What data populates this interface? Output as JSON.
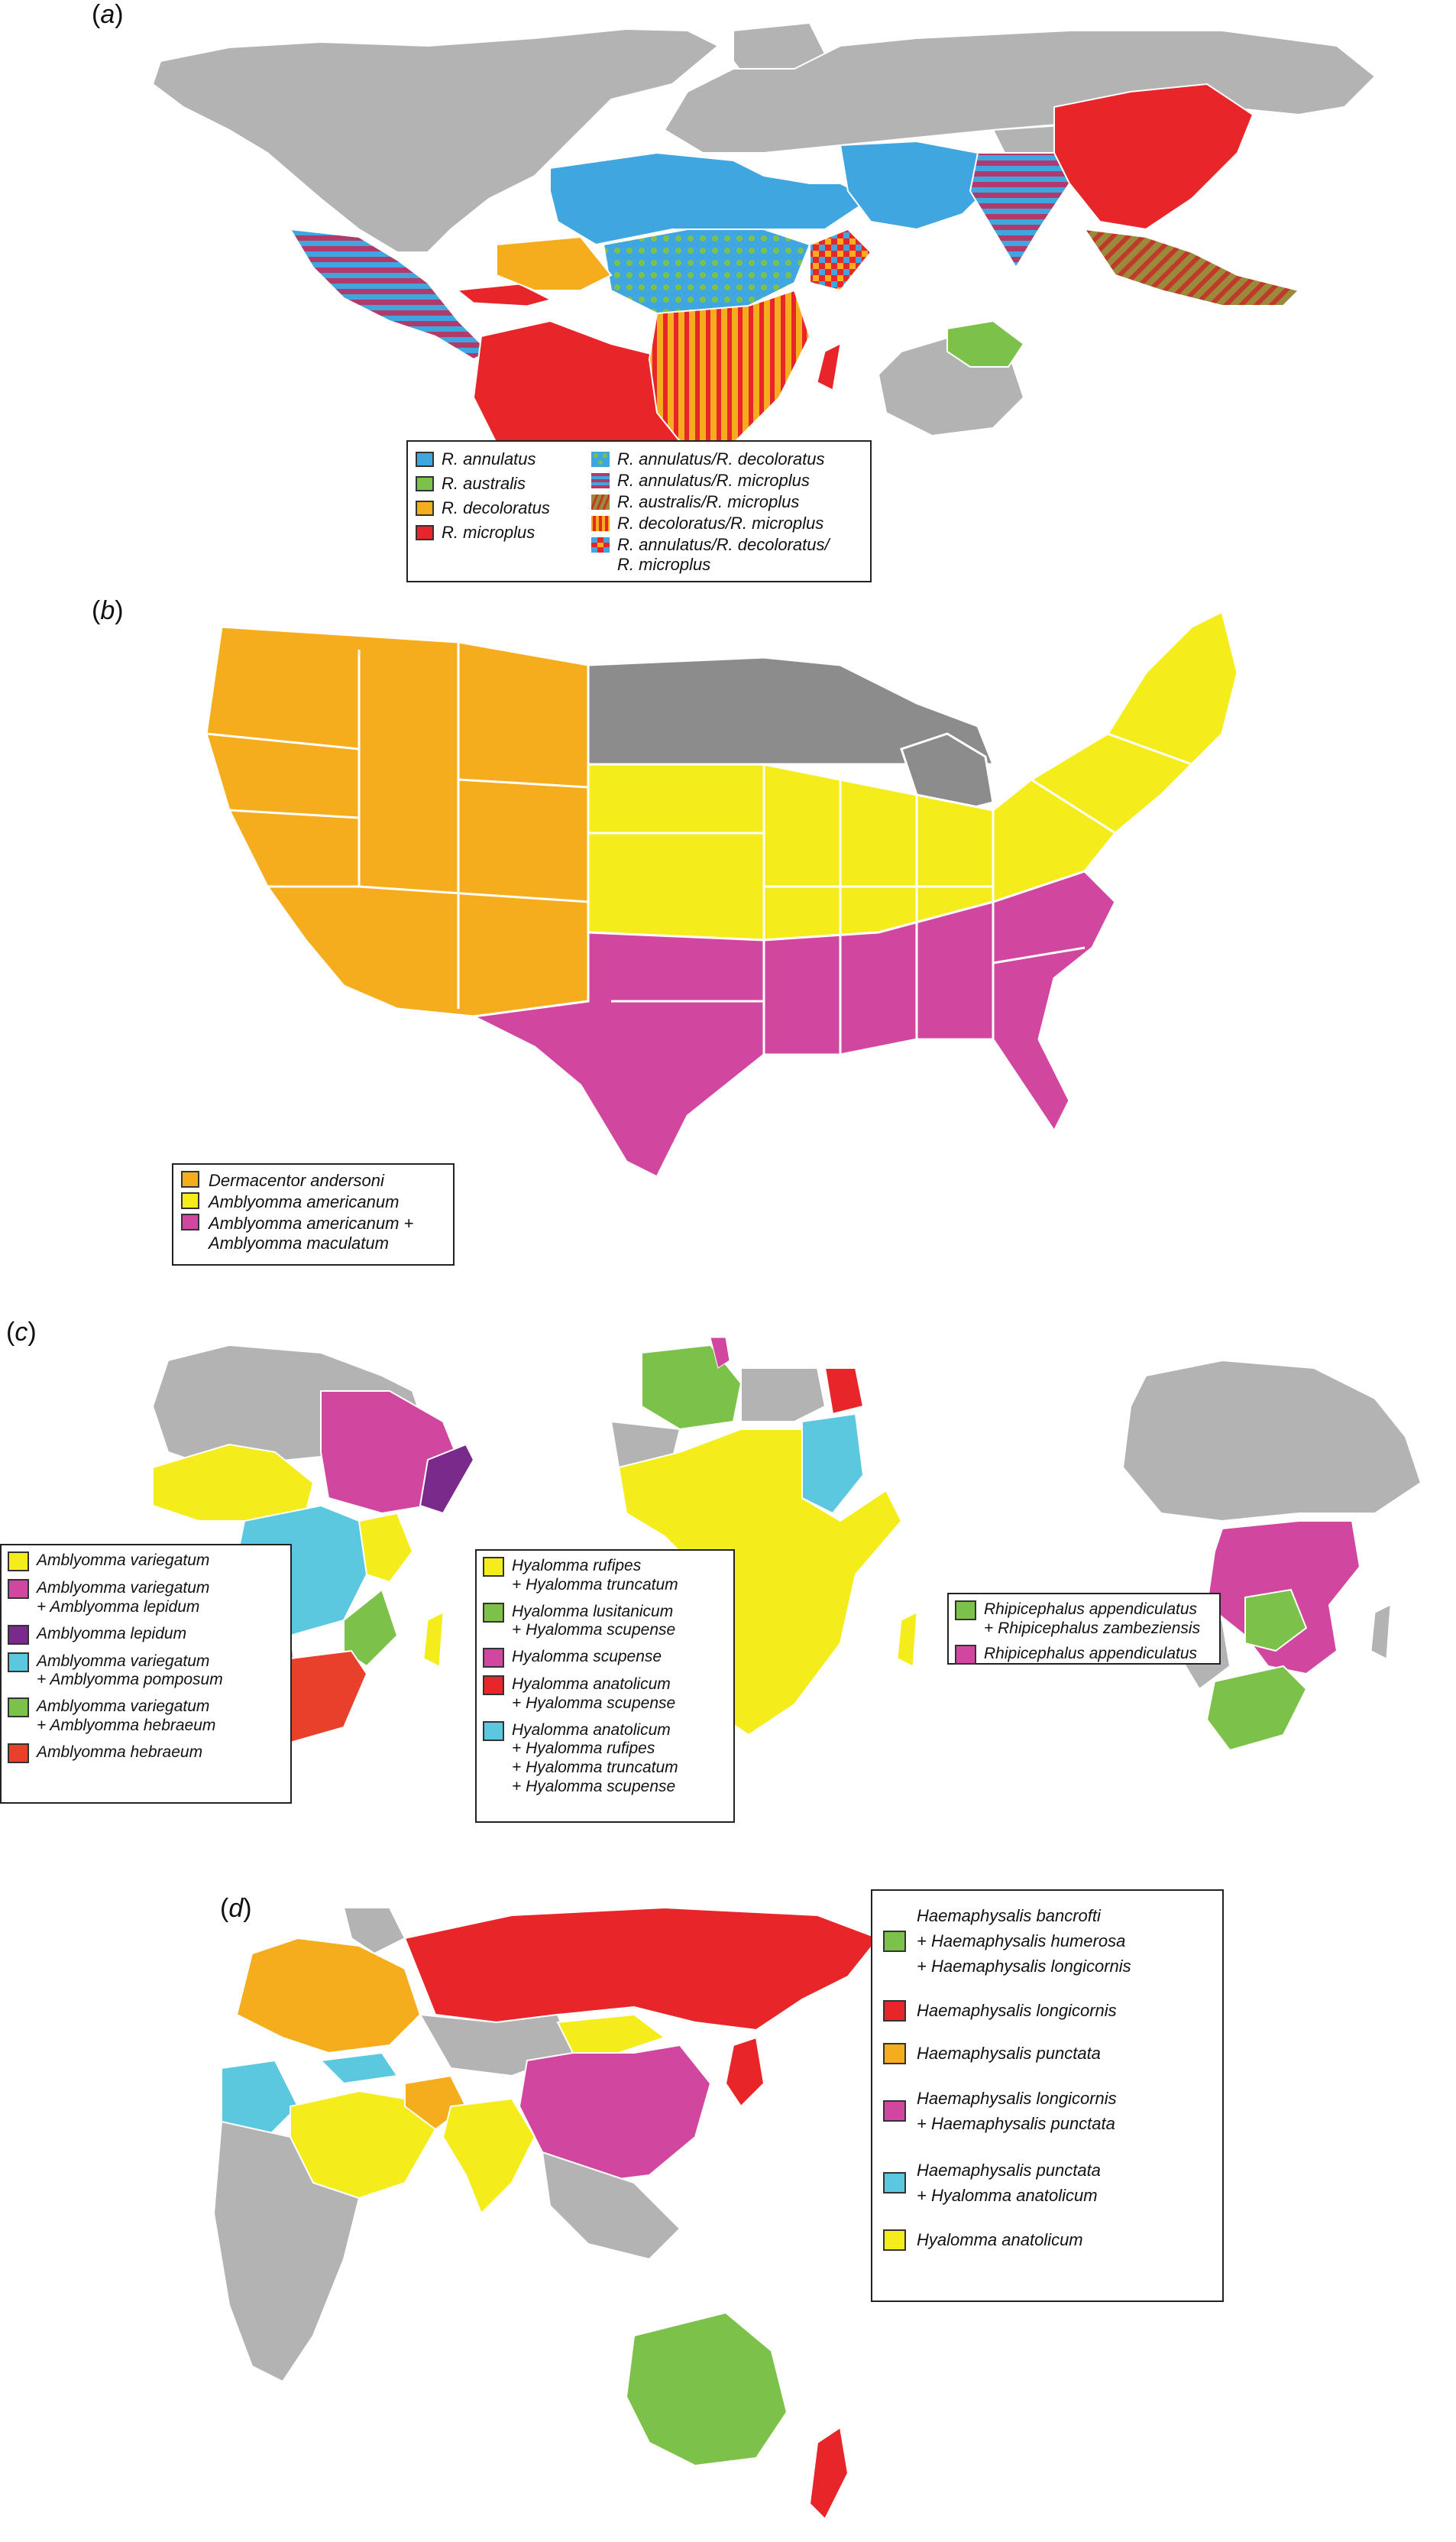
{
  "panels": {
    "a": {
      "label": "a",
      "legend_left": [
        {
          "text": "R. annulatus",
          "color": "#3fa6e0"
        },
        {
          "text": "R. australis",
          "color": "#7cc24a"
        },
        {
          "text": "R. decoloratus",
          "color": "#f6ad1d"
        },
        {
          "text": "R. microplus",
          "color": "#e8262a"
        }
      ],
      "legend_right": [
        {
          "lines": [
            "R. annulatus/R. decoloratus"
          ],
          "pattern": "dots-blue-green"
        },
        {
          "lines": [
            "R. annulatus/R. microplus"
          ],
          "pattern": "stripes-blue-red"
        },
        {
          "lines": [
            "R. australis/R. microplus"
          ],
          "pattern": "stripes-green-red"
        },
        {
          "lines": [
            "R. decoloratus/R. microplus"
          ],
          "pattern": "stripes-orange-red"
        },
        {
          "lines": [
            "R. annulatus/R. decoloratus/",
            "R. microplus"
          ],
          "pattern": "checker-blue-orange-red"
        }
      ]
    },
    "b": {
      "label": "b",
      "legend": [
        {
          "lines": [
            "Dermacentor andersoni"
          ],
          "color": "#f6ad1d"
        },
        {
          "lines": [
            "Amblyomma americanum"
          ],
          "color": "#f5ec1c"
        },
        {
          "lines": [
            "Amblyomma americanum +",
            "Amblyomma maculatum"
          ],
          "color": "#d1479f"
        }
      ]
    },
    "c": {
      "label": "c",
      "legend_1": [
        {
          "lines": [
            "Amblyomma variegatum"
          ],
          "color": "#f5ec1c"
        },
        {
          "lines": [
            "Amblyomma variegatum",
            "+ Amblyomma lepidum"
          ],
          "color": "#d1479f"
        },
        {
          "lines": [
            "Amblyomma lepidum"
          ],
          "color": "#7a2a8a"
        },
        {
          "lines": [
            "Amblyomma variegatum",
            "+ Amblyomma pomposum"
          ],
          "color": "#5bc8e0"
        },
        {
          "lines": [
            "Amblyomma variegatum",
            "+ Amblyomma hebraeum"
          ],
          "color": "#7cc24a"
        },
        {
          "lines": [
            "Amblyomma hebraeum"
          ],
          "color": "#e8402a"
        }
      ],
      "legend_2": [
        {
          "lines": [
            "Hyalomma rufipes",
            "+ Hyalomma truncatum"
          ],
          "color": "#f5ec1c"
        },
        {
          "lines": [
            "Hyalomma lusitanicum",
            "+ Hyalomma scupense"
          ],
          "color": "#7cc24a"
        },
        {
          "lines": [
            "Hyalomma scupense"
          ],
          "color": "#d1479f"
        },
        {
          "lines": [
            "Hyalomma anatolicum",
            "+ Hyalomma scupense"
          ],
          "color": "#e8262a"
        },
        {
          "lines": [
            "Hyalomma anatolicum",
            "+ Hyalomma rufipes",
            "+ Hyalomma truncatum",
            "+ Hyalomma scupense"
          ],
          "color": "#5bc8e0"
        }
      ],
      "legend_3": [
        {
          "lines": [
            "Rhipicephalus appendiculatus",
            "+ Rhipicephalus zambeziensis"
          ],
          "color": "#7cc24a"
        },
        {
          "lines": [
            "Rhipicephalus appendiculatus"
          ],
          "color": "#d1479f"
        }
      ]
    },
    "d": {
      "label": "d",
      "legend": [
        {
          "lines": [
            "Haemaphysalis bancrofti",
            "+ Haemaphysalis humerosa",
            "+ Haemaphysalis longicornis"
          ],
          "color": "#7cc24a"
        },
        {
          "lines": [
            "Haemaphysalis longicornis"
          ],
          "color": "#e8262a"
        },
        {
          "lines": [
            "Haemaphysalis punctata"
          ],
          "color": "#f6ad1d"
        },
        {
          "lines": [
            "Haemaphysalis longicornis",
            "+ Haemaphysalis punctata"
          ],
          "color": "#d1479f"
        },
        {
          "lines": [
            "Haemaphysalis punctata",
            "+ Hyalomma anatolicum"
          ],
          "color": "#5bc8e0"
        },
        {
          "lines": [
            "Hyalomma anatolicum"
          ],
          "color": "#f5ec1c"
        }
      ]
    }
  },
  "colors": {
    "land_gray": "#b3b3b3",
    "annulatus_blue": "#3fa6e0",
    "australis_green": "#7cc24a",
    "decoloratus_orange": "#f6ad1d",
    "microplus_red": "#e8262a",
    "yellow": "#f5ec1c",
    "magenta": "#d1479f",
    "purple": "#7a2a8a",
    "cyan": "#5bc8e0",
    "dark_gray": "#8c8c8c"
  }
}
